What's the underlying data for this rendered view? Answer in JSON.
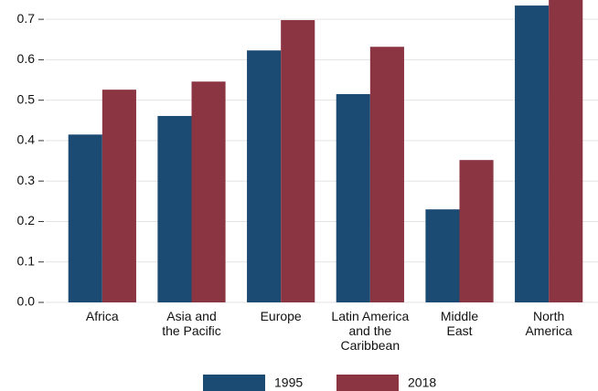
{
  "chart_data": {
    "type": "bar",
    "categories": [
      "Africa",
      "Asia and\nthe Pacific",
      "Europe",
      "Latin America\nand the\nCaribbean",
      "Middle\nEast",
      "North\nAmerica"
    ],
    "series": [
      {
        "name": "1995",
        "color": "#1b4a72",
        "values": [
          0.415,
          0.461,
          0.623,
          0.515,
          0.23,
          0.734
        ]
      },
      {
        "name": "2018",
        "color": "#8b3442",
        "values": [
          0.526,
          0.546,
          0.698,
          0.632,
          0.352,
          0.76
        ]
      }
    ],
    "ylim": [
      0,
      0.75
    ],
    "yticks": [
      {
        "value": 0,
        "label": "0.0"
      },
      0.1,
      0.2,
      0.3,
      0.4,
      0.5,
      0.6,
      0.7
    ],
    "grid": true,
    "legend": "bottom"
  }
}
